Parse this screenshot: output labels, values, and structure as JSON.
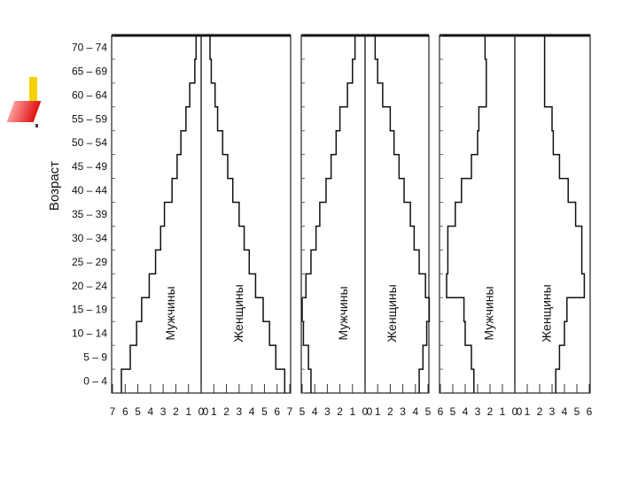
{
  "chart_data": [
    {
      "type": "bar",
      "orientation": "population-pyramid",
      "title": "",
      "ylabel": "Возраст",
      "categories": [
        "0 – 4",
        "5 – 9",
        "10 – 14",
        "15 – 19",
        "20 – 24",
        "25 – 29",
        "30 – 34",
        "35 – 39",
        "40 – 44",
        "45 – 49",
        "50 – 54",
        "55 – 59",
        "60 – 64",
        "65 – 69",
        "70 – 74"
      ],
      "x_ticks_left": [
        "7",
        "6",
        "5",
        "4",
        "3",
        "2",
        "1",
        "0"
      ],
      "x_ticks_right": [
        "0",
        "1",
        "2",
        "3",
        "4",
        "5",
        "6",
        "7"
      ],
      "xlim": [
        0,
        7
      ],
      "series": [
        {
          "name": "Мужчины",
          "values": [
            6.3,
            5.6,
            5.1,
            4.7,
            4.1,
            3.6,
            3.2,
            2.9,
            2.3,
            1.9,
            1.6,
            1.2,
            0.9,
            0.5,
            0.4
          ]
        },
        {
          "name": "Женщины",
          "values": [
            6.6,
            5.9,
            5.4,
            4.9,
            4.3,
            3.8,
            3.4,
            3.0,
            2.5,
            2.1,
            1.7,
            1.3,
            1.1,
            0.8,
            0.7
          ]
        }
      ]
    },
    {
      "type": "bar",
      "orientation": "population-pyramid",
      "title": "",
      "categories": [
        "0 – 4",
        "5 – 9",
        "10 – 14",
        "15 – 19",
        "20 – 24",
        "25 – 29",
        "30 – 34",
        "35 – 39",
        "40 – 44",
        "45 – 49",
        "50 – 54",
        "55 – 59",
        "60 – 64",
        "65 – 69",
        "70 – 74"
      ],
      "x_ticks_left": [
        "5",
        "4",
        "3",
        "2",
        "1",
        "0"
      ],
      "x_ticks_right": [
        "0",
        "1",
        "2",
        "3",
        "4",
        "5"
      ],
      "xlim": [
        0,
        5
      ],
      "series": [
        {
          "name": "Мужчины",
          "values": [
            4.3,
            4.5,
            4.9,
            5.0,
            4.7,
            4.3,
            3.9,
            3.6,
            3.1,
            2.7,
            2.3,
            2.0,
            1.4,
            1.0,
            0.8
          ]
        },
        {
          "name": "Женщины",
          "values": [
            4.3,
            4.6,
            4.9,
            5.1,
            4.8,
            4.3,
            3.9,
            3.6,
            3.1,
            2.7,
            2.3,
            2.0,
            1.4,
            1.0,
            0.8
          ]
        }
      ]
    },
    {
      "type": "bar",
      "orientation": "population-pyramid",
      "title": "",
      "categories": [
        "0 – 4",
        "5 – 9",
        "10 – 14",
        "15 – 19",
        "20 – 24",
        "25 – 29",
        "30 – 34",
        "35 – 39",
        "40 – 44",
        "45 – 49",
        "50 – 54",
        "55 – 59",
        "60 – 64",
        "65 – 69",
        "70 – 74"
      ],
      "x_ticks_left": [
        "6",
        "5",
        "4",
        "3",
        "2",
        "1",
        "0"
      ],
      "x_ticks_right": [
        "0",
        "1",
        "2",
        "3",
        "4",
        "5",
        "6"
      ],
      "xlim": [
        0,
        6
      ],
      "series": [
        {
          "name": "Мужчины",
          "values": [
            3.3,
            3.5,
            4.0,
            4.1,
            5.5,
            5.4,
            5.4,
            4.8,
            4.3,
            3.5,
            3.0,
            2.9,
            2.3,
            2.3,
            2.4
          ]
        },
        {
          "name": "Женщины",
          "values": [
            3.3,
            3.6,
            4.0,
            4.2,
            5.6,
            5.4,
            5.4,
            4.9,
            4.3,
            3.6,
            3.1,
            3.0,
            2.4,
            2.4,
            2.4
          ]
        }
      ]
    }
  ]
}
